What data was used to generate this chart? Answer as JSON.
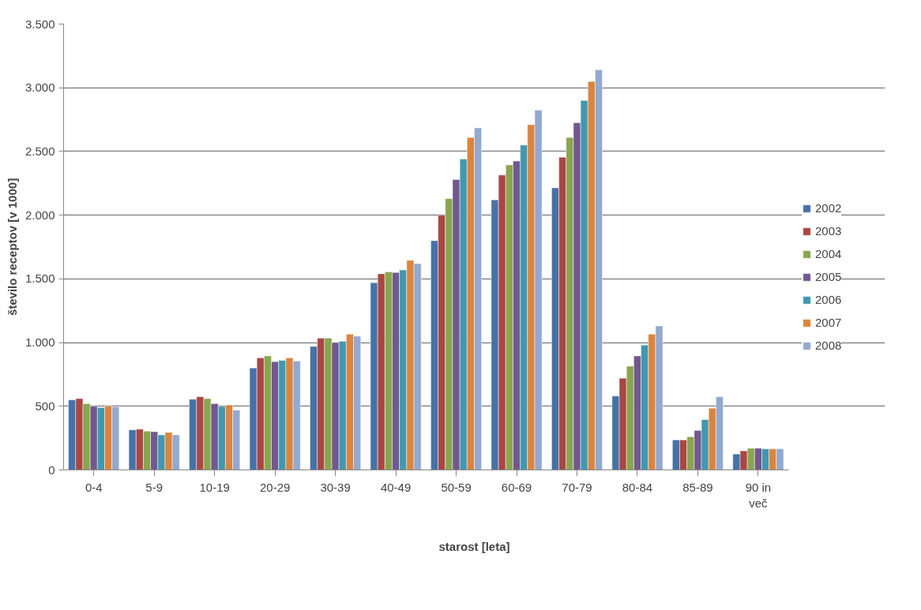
{
  "chart_data": {
    "type": "bar",
    "xlabel": "starost [leta]",
    "ylabel": "število receptov [v 1000]",
    "categories": [
      "0-4",
      "5-9",
      "10-19",
      "20-29",
      "30-39",
      "40-49",
      "50-59",
      "60-69",
      "70-79",
      "80-84",
      "85-89",
      "90 in več"
    ],
    "series": [
      {
        "name": "2002",
        "color": "#4572a7",
        "values": [
          550,
          315,
          555,
          800,
          970,
          1470,
          1800,
          2120,
          2215,
          580,
          235,
          125
        ]
      },
      {
        "name": "2003",
        "color": "#aa4643",
        "values": [
          560,
          320,
          575,
          880,
          1035,
          1540,
          2000,
          2315,
          2455,
          720,
          235,
          150
        ]
      },
      {
        "name": "2004",
        "color": "#89a54e",
        "values": [
          520,
          305,
          560,
          895,
          1035,
          1555,
          2130,
          2395,
          2610,
          815,
          260,
          170
        ]
      },
      {
        "name": "2005",
        "color": "#71588f",
        "values": [
          500,
          300,
          520,
          850,
          1000,
          1550,
          2280,
          2425,
          2725,
          895,
          310,
          170
        ]
      },
      {
        "name": "2006",
        "color": "#4198af",
        "values": [
          490,
          275,
          500,
          860,
          1010,
          1570,
          2440,
          2550,
          2900,
          980,
          395,
          165
        ]
      },
      {
        "name": "2007",
        "color": "#db843d",
        "values": [
          500,
          295,
          510,
          880,
          1065,
          1645,
          2610,
          2710,
          3050,
          1065,
          485,
          165
        ]
      },
      {
        "name": "2008",
        "color": "#93a9cf",
        "values": [
          495,
          275,
          470,
          855,
          1050,
          1620,
          2685,
          2825,
          3140,
          1130,
          575,
          165
        ]
      }
    ],
    "ylim": [
      0,
      3500
    ],
    "yticks": [
      0,
      500,
      {
        "value": 1000,
        "label": "1.000"
      },
      {
        "value": 1500,
        "label": "1.500"
      },
      {
        "value": 2000,
        "label": "2.000"
      },
      {
        "value": 2500,
        "label": "2.500"
      },
      {
        "value": 3000,
        "label": "3.000"
      },
      {
        "value": 3500,
        "label": "3.500"
      }
    ],
    "grid": "y",
    "legend": "right"
  }
}
